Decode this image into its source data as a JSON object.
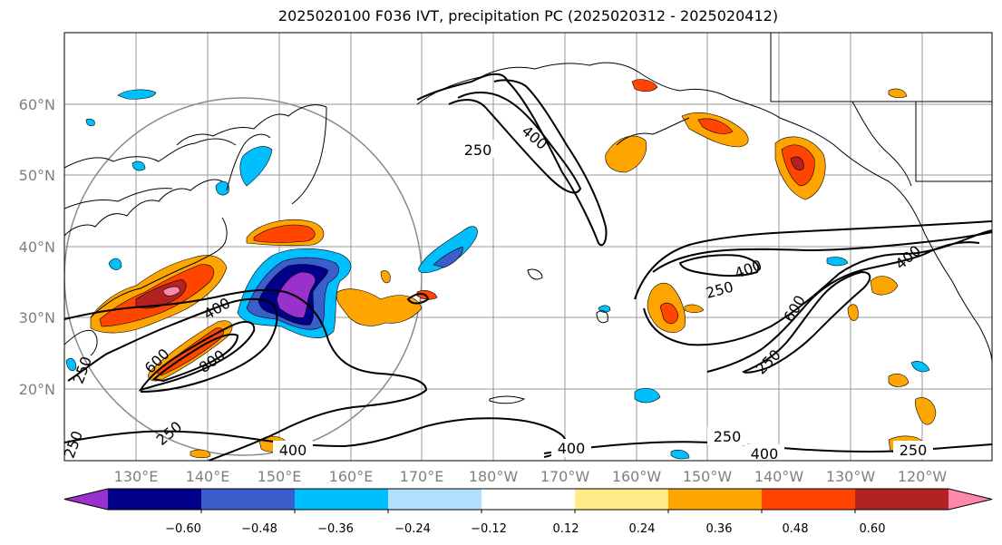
{
  "title": "2025020100 F036 IVT, precipitation PC (2025020312 - 2025020412)",
  "lat_labels": [
    "60°N",
    "50°N",
    "40°N",
    "30°N",
    "20°N"
  ],
  "lon_labels": [
    "130°E",
    "140°E",
    "150°E",
    "160°E",
    "170°E",
    "180°W",
    "170°W",
    "160°W",
    "150°W",
    "140°W",
    "130°W",
    "120°W"
  ],
  "colorbar": {
    "tick_labels": [
      "−0.60",
      "−0.48",
      "−0.36",
      "−0.24",
      "−0.12",
      "0.12",
      "0.24",
      "0.36",
      "0.48",
      "0.60"
    ],
    "colors": [
      "#9932cc",
      "#00008b",
      "#3a5fcd",
      "#00bfff",
      "#b0e2ff",
      "#ffffff",
      "#ffeb87",
      "#ffa500",
      "#ff4500",
      "#b22222",
      "#ff88aa"
    ]
  },
  "contour_labels": [
    "250",
    "400",
    "250",
    "400",
    "600",
    "800",
    "250",
    "250",
    "400",
    "400",
    "250",
    "400",
    "600",
    "250",
    "400",
    "400",
    "250",
    "250"
  ]
}
